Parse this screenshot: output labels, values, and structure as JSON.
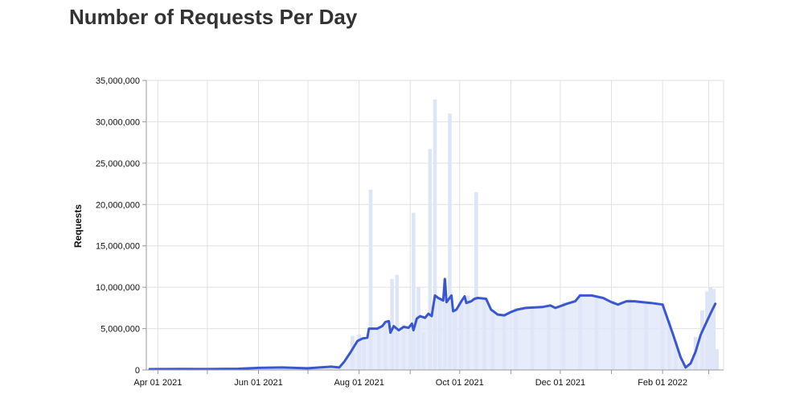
{
  "page": {
    "title": "Number of Requests Per Day"
  },
  "colors": {
    "line": "#3b57d0",
    "bars": "#dde5f7",
    "grid": "#e2e2e2",
    "axis": "#999999"
  },
  "chart_data": {
    "type": "line",
    "title": "Number of Requests Per Day",
    "xlabel": "",
    "ylabel": "Requests",
    "grid": true,
    "xlim": [
      "2021-03-25",
      "2022-03-10"
    ],
    "ylim": [
      0,
      35000000
    ],
    "y_ticks": [
      0,
      5000000,
      10000000,
      15000000,
      20000000,
      25000000,
      30000000,
      35000000
    ],
    "y_tick_labels": [
      "0",
      "5,000,000",
      "10,000,000",
      "15,000,000",
      "20,000,000",
      "25,000,000",
      "30,000,000",
      "35,000,000"
    ],
    "x_ticks": [
      "2021-04-01",
      "2021-06-01",
      "2021-08-01",
      "2021-10-01",
      "2021-12-01",
      "2022-02-01"
    ],
    "x_tick_labels": [
      "Apr 01 2021",
      "Jun 01 2021",
      "Aug 01 2021",
      "Oct 01 2021",
      "Dec 01 2021",
      "Feb 01 2022"
    ],
    "x_minor_ticks": [
      "2021-05-01",
      "2021-07-01",
      "2021-09-01",
      "2021-11-01",
      "2022-01-01",
      "2022-03-01"
    ],
    "series": [
      {
        "kind": "line",
        "points": [
          [
            "2021-03-27",
            100000
          ],
          [
            "2021-04-15",
            120000
          ],
          [
            "2021-05-01",
            110000
          ],
          [
            "2021-05-20",
            150000
          ],
          [
            "2021-06-01",
            250000
          ],
          [
            "2021-06-15",
            300000
          ],
          [
            "2021-07-01",
            200000
          ],
          [
            "2021-07-15",
            400000
          ],
          [
            "2021-07-20",
            300000
          ],
          [
            "2021-07-23",
            1000000
          ],
          [
            "2021-07-27",
            2200000
          ],
          [
            "2021-07-31",
            3500000
          ],
          [
            "2021-08-03",
            3800000
          ],
          [
            "2021-08-06",
            3900000
          ],
          [
            "2021-08-07",
            5000000
          ],
          [
            "2021-08-12",
            5000000
          ],
          [
            "2021-08-15",
            5300000
          ],
          [
            "2021-08-17",
            5800000
          ],
          [
            "2021-08-19",
            5900000
          ],
          [
            "2021-08-20",
            4500000
          ],
          [
            "2021-08-22",
            5300000
          ],
          [
            "2021-08-25",
            4800000
          ],
          [
            "2021-08-28",
            5200000
          ],
          [
            "2021-08-31",
            5100000
          ],
          [
            "2021-09-02",
            5600000
          ],
          [
            "2021-09-03",
            4800000
          ],
          [
            "2021-09-05",
            6200000
          ],
          [
            "2021-09-07",
            6500000
          ],
          [
            "2021-09-10",
            6300000
          ],
          [
            "2021-09-12",
            6800000
          ],
          [
            "2021-09-14",
            6500000
          ],
          [
            "2021-09-16",
            9000000
          ],
          [
            "2021-09-18",
            8700000
          ],
          [
            "2021-09-21",
            8400000
          ],
          [
            "2021-09-22",
            11000000
          ],
          [
            "2021-09-23",
            8200000
          ],
          [
            "2021-09-26",
            9000000
          ],
          [
            "2021-09-27",
            7100000
          ],
          [
            "2021-09-29",
            7300000
          ],
          [
            "2021-10-02",
            8300000
          ],
          [
            "2021-10-04",
            8900000
          ],
          [
            "2021-10-05",
            8100000
          ],
          [
            "2021-10-08",
            8300000
          ],
          [
            "2021-10-10",
            8600000
          ],
          [
            "2021-10-12",
            8700000
          ],
          [
            "2021-10-17",
            8600000
          ],
          [
            "2021-10-20",
            7300000
          ],
          [
            "2021-10-24",
            6700000
          ],
          [
            "2021-10-28",
            6600000
          ],
          [
            "2021-11-01",
            7000000
          ],
          [
            "2021-11-05",
            7300000
          ],
          [
            "2021-11-10",
            7500000
          ],
          [
            "2021-11-20",
            7600000
          ],
          [
            "2021-11-25",
            7800000
          ],
          [
            "2021-11-28",
            7500000
          ],
          [
            "2021-12-05",
            8000000
          ],
          [
            "2021-12-10",
            8300000
          ],
          [
            "2021-12-13",
            9000000
          ],
          [
            "2021-12-20",
            9000000
          ],
          [
            "2021-12-27",
            8700000
          ],
          [
            "2022-01-01",
            8200000
          ],
          [
            "2022-01-05",
            7900000
          ],
          [
            "2022-01-10",
            8300000
          ],
          [
            "2022-01-15",
            8300000
          ],
          [
            "2022-01-20",
            8200000
          ],
          [
            "2022-01-25",
            8100000
          ],
          [
            "2022-02-01",
            7900000
          ],
          [
            "2022-02-07",
            4500000
          ],
          [
            "2022-02-12",
            1500000
          ],
          [
            "2022-02-15",
            300000
          ],
          [
            "2022-02-18",
            800000
          ],
          [
            "2022-02-21",
            2200000
          ],
          [
            "2022-02-24",
            4200000
          ],
          [
            "2022-02-27",
            5500000
          ],
          [
            "2022-03-02",
            6800000
          ],
          [
            "2022-03-05",
            8000000
          ]
        ]
      },
      {
        "kind": "bar",
        "points": [
          [
            "2021-07-28",
            4100000
          ],
          [
            "2021-08-01",
            4300000
          ],
          [
            "2021-08-04",
            3900000
          ],
          [
            "2021-08-08",
            21800000
          ],
          [
            "2021-08-13",
            5100000
          ],
          [
            "2021-08-17",
            5900000
          ],
          [
            "2021-08-21",
            11000000
          ],
          [
            "2021-08-24",
            11500000
          ],
          [
            "2021-08-28",
            5500000
          ],
          [
            "2021-09-01",
            5000000
          ],
          [
            "2021-09-03",
            19000000
          ],
          [
            "2021-09-06",
            10000000
          ],
          [
            "2021-09-09",
            4500000
          ],
          [
            "2021-09-13",
            26700000
          ],
          [
            "2021-09-16",
            32700000
          ],
          [
            "2021-09-19",
            8500000
          ],
          [
            "2021-09-22",
            11000000
          ],
          [
            "2021-09-25",
            31000000
          ],
          [
            "2021-09-28",
            7000000
          ],
          [
            "2021-10-02",
            8300000
          ],
          [
            "2021-10-06",
            9000000
          ],
          [
            "2021-10-11",
            21500000
          ],
          [
            "2021-10-16",
            8600000
          ],
          [
            "2021-10-21",
            7300000
          ],
          [
            "2021-10-28",
            6800000
          ],
          [
            "2021-11-04",
            7500000
          ],
          [
            "2021-11-14",
            7700000
          ],
          [
            "2021-11-24",
            7900000
          ],
          [
            "2021-12-03",
            8200000
          ],
          [
            "2021-12-13",
            9200000
          ],
          [
            "2021-12-23",
            9000000
          ],
          [
            "2022-01-02",
            8400000
          ],
          [
            "2022-01-12",
            8600000
          ],
          [
            "2022-01-22",
            8300000
          ],
          [
            "2022-02-01",
            8100000
          ],
          [
            "2022-02-05",
            6000000
          ],
          [
            "2022-02-09",
            3500000
          ],
          [
            "2022-02-13",
            700000
          ],
          [
            "2022-02-17",
            500000
          ],
          [
            "2022-02-21",
            4000000
          ],
          [
            "2022-02-25",
            7200000
          ],
          [
            "2022-02-28",
            9500000
          ],
          [
            "2022-03-02",
            10000000
          ],
          [
            "2022-03-04",
            9800000
          ],
          [
            "2022-03-06",
            2500000
          ]
        ]
      }
    ]
  }
}
